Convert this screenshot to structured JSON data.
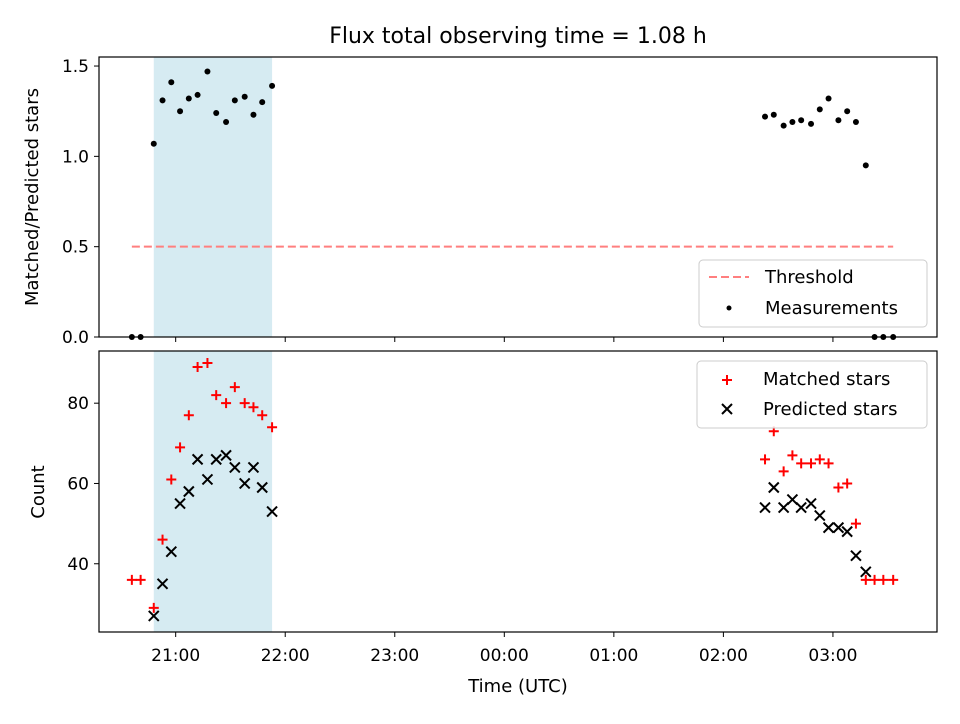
{
  "title": "Flux total observing time = 1.08 h",
  "xlabel": "Time (UTC)",
  "colors": {
    "matched": "#ff0000",
    "predicted": "#000000",
    "threshold": "#ff7f7f",
    "shade": "#add8e6",
    "measure": "#000000"
  },
  "chart_data": [
    {
      "type": "scatter",
      "panel": "top",
      "ylabel": "Matched/Predicted stars",
      "xlim_hours": [
        20.3,
        27.95
      ],
      "ylim": [
        0,
        1.55
      ],
      "yticks": [
        0.0,
        0.5,
        1.0,
        1.5
      ],
      "ytick_labels": [
        "0.0",
        "0.5",
        "1.0",
        "1.5"
      ],
      "shaded_span_hours": [
        20.8,
        21.88
      ],
      "threshold": {
        "name": "Threshold",
        "value": 0.5,
        "x_hours": [
          20.6,
          27.55
        ]
      },
      "legend": {
        "placement": "lower-right",
        "entries": [
          "Threshold",
          "Measurements"
        ]
      },
      "series": [
        {
          "name": "Measurements",
          "x_hours": [
            20.6,
            20.68,
            20.8,
            20.88,
            20.96,
            21.04,
            21.12,
            21.2,
            21.29,
            21.37,
            21.46,
            21.54,
            21.63,
            21.71,
            21.79,
            21.88,
            26.38,
            26.46,
            26.55,
            26.63,
            26.71,
            26.8,
            26.88,
            26.96,
            27.05,
            27.13,
            27.21,
            27.3,
            27.38,
            27.46,
            27.55
          ],
          "y": [
            0,
            0,
            1.07,
            1.31,
            1.41,
            1.25,
            1.32,
            1.34,
            1.47,
            1.24,
            1.19,
            1.31,
            1.33,
            1.23,
            1.3,
            1.39,
            1.22,
            1.23,
            1.17,
            1.19,
            1.2,
            1.18,
            1.26,
            1.32,
            1.2,
            1.25,
            1.19,
            0.95,
            0,
            0,
            0
          ]
        }
      ]
    },
    {
      "type": "scatter",
      "panel": "bottom",
      "ylabel": "Count",
      "xlim_hours": [
        20.3,
        27.95
      ],
      "ylim": [
        23,
        93
      ],
      "yticks": [
        40,
        60,
        80
      ],
      "ytick_labels": [
        "40",
        "60",
        "80"
      ],
      "xticks_hours": [
        21,
        22,
        23,
        24,
        25,
        26,
        27
      ],
      "xtick_labels": [
        "21:00",
        "22:00",
        "23:00",
        "00:00",
        "01:00",
        "02:00",
        "03:00"
      ],
      "shaded_span_hours": [
        20.8,
        21.88
      ],
      "legend": {
        "placement": "upper-right",
        "entries": [
          "Matched stars",
          "Predicted stars"
        ]
      },
      "series": [
        {
          "name": "Matched stars",
          "marker": "plus",
          "x_hours": [
            20.6,
            20.68,
            20.8,
            20.88,
            20.96,
            21.04,
            21.12,
            21.2,
            21.29,
            21.37,
            21.46,
            21.54,
            21.63,
            21.71,
            21.79,
            21.88,
            26.38,
            26.46,
            26.55,
            26.63,
            26.71,
            26.8,
            26.88,
            26.96,
            27.05,
            27.13,
            27.21,
            27.3,
            27.38,
            27.46,
            27.55
          ],
          "y": [
            36,
            36,
            29,
            46,
            61,
            69,
            77,
            89,
            90,
            82,
            80,
            84,
            80,
            79,
            77,
            74,
            66,
            73,
            63,
            67,
            65,
            65,
            66,
            65,
            59,
            60,
            50,
            36,
            36,
            36,
            36
          ]
        },
        {
          "name": "Predicted stars",
          "marker": "x",
          "x_hours": [
            20.8,
            20.88,
            20.96,
            21.04,
            21.12,
            21.2,
            21.29,
            21.37,
            21.46,
            21.54,
            21.63,
            21.71,
            21.79,
            21.88,
            26.38,
            26.46,
            26.55,
            26.63,
            26.71,
            26.8,
            26.88,
            26.96,
            27.05,
            27.13,
            27.21,
            27.3
          ],
          "y": [
            27,
            35,
            43,
            55,
            58,
            66,
            61,
            66,
            67,
            64,
            60,
            64,
            59,
            53,
            54,
            59,
            54,
            56,
            54,
            55,
            52,
            49,
            49,
            48,
            42,
            38
          ]
        }
      ]
    }
  ]
}
